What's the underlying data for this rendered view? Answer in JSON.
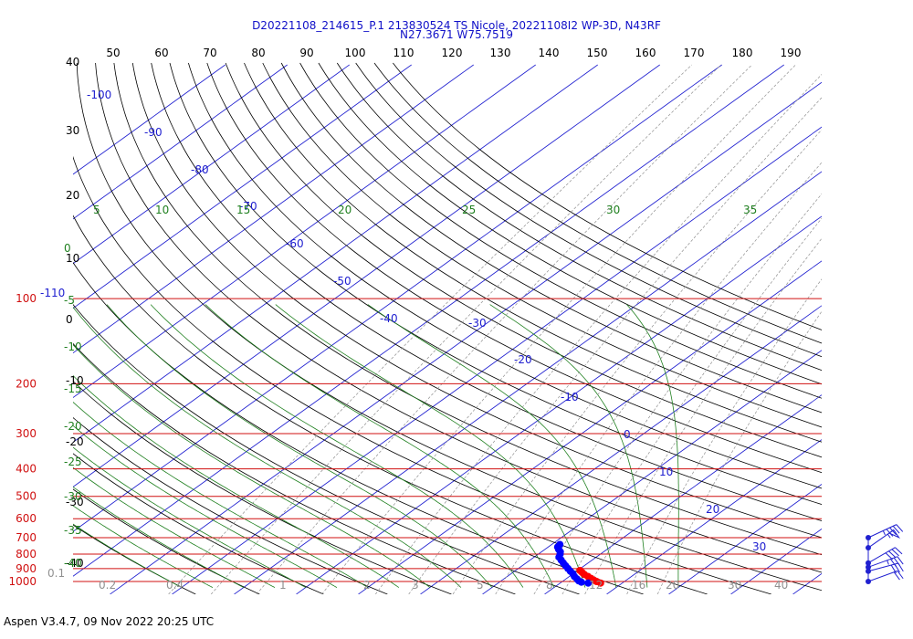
{
  "chart_data": {
    "type": "skew-t",
    "title": "D20221108_214615_P.1 213830524 TS Nicole, 20221108I2 WP-3D, N43RF",
    "subtitle": "N27.3671 W75.7519",
    "pressure_levels": [
      {
        "p": 100,
        "label": "100"
      },
      {
        "p": 200,
        "label": "200"
      },
      {
        "p": 300,
        "label": "300"
      },
      {
        "p": 400,
        "label": "400"
      },
      {
        "p": 500,
        "label": "500"
      },
      {
        "p": 600,
        "label": "600"
      },
      {
        "p": 700,
        "label": "700"
      },
      {
        "p": 800,
        "label": "800"
      },
      {
        "p": 900,
        "label": "900"
      },
      {
        "p": 1000,
        "label": "1000"
      }
    ],
    "top_left_extra_label": "-110",
    "isotherms_left_labels": [
      "40",
      "30",
      "20",
      "10",
      "0",
      "-10",
      "-20",
      "-30",
      "-40"
    ],
    "isotherm_top_labels": [
      "50",
      "60",
      "70",
      "80",
      "90",
      "100",
      "110",
      "120",
      "130",
      "140",
      "150",
      "160",
      "170",
      "180",
      "190"
    ],
    "isotherm_inline_labels": [
      "-100",
      "-90",
      "-80",
      "-70",
      "-60",
      "-50",
      "-40",
      "-30",
      "-20",
      "-10",
      "0",
      "10",
      "20",
      "30"
    ],
    "adiabat_labels_top": [
      "5",
      "10",
      "15",
      "20",
      "25",
      "30",
      "35"
    ],
    "adiabat_labels_left": [
      "0",
      "-5",
      "-10",
      "-15",
      "-20",
      "-25",
      "-30",
      "-35",
      "-40"
    ],
    "mixing_ratio_labels": [
      "0.1",
      "0.2",
      "0.4",
      "1",
      "2",
      "3",
      "5",
      "8",
      "12",
      "16",
      "20",
      "30",
      "40"
    ],
    "temperature_profile": [
      {
        "p": 1013,
        "t": 26.5
      },
      {
        "p": 1000,
        "t": 25.5
      },
      {
        "p": 990,
        "t": 24.8
      },
      {
        "p": 975,
        "t": 23.9
      },
      {
        "p": 960,
        "t": 23.0
      },
      {
        "p": 945,
        "t": 22.0
      },
      {
        "p": 930,
        "t": 21.2
      },
      {
        "p": 915,
        "t": 20.4
      }
    ],
    "dewpoint_profile": [
      {
        "p": 1013,
        "t": 24.5
      },
      {
        "p": 1005,
        "t": 23.2
      },
      {
        "p": 995,
        "t": 22.5
      },
      {
        "p": 980,
        "t": 21.8
      },
      {
        "p": 960,
        "t": 20.8
      },
      {
        "p": 940,
        "t": 20.0
      },
      {
        "p": 920,
        "t": 19.0
      },
      {
        "p": 900,
        "t": 18.0
      },
      {
        "p": 880,
        "t": 17.0
      },
      {
        "p": 860,
        "t": 16.0
      },
      {
        "p": 840,
        "t": 15.0
      },
      {
        "p": 820,
        "t": 14.0
      },
      {
        "p": 800,
        "t": 13.5
      },
      {
        "p": 785,
        "t": 13.0
      },
      {
        "p": 770,
        "t": 12.2
      },
      {
        "p": 755,
        "t": 11.5
      },
      {
        "p": 740,
        "t": 11.3
      }
    ],
    "wind_profile": [
      {
        "p": 700,
        "speed_kt": 45,
        "dir_deg": 245
      },
      {
        "p": 760,
        "speed_kt": 55,
        "dir_deg": 235
      },
      {
        "p": 860,
        "speed_kt": 40,
        "dir_deg": 240
      },
      {
        "p": 890,
        "speed_kt": 35,
        "dir_deg": 250
      },
      {
        "p": 920,
        "speed_kt": 30,
        "dir_deg": 255
      },
      {
        "p": 1000,
        "speed_kt": 20,
        "dir_deg": 250
      }
    ]
  },
  "footer": "Aspen V3.4.7, 09 Nov 2022  20:25 UTC"
}
